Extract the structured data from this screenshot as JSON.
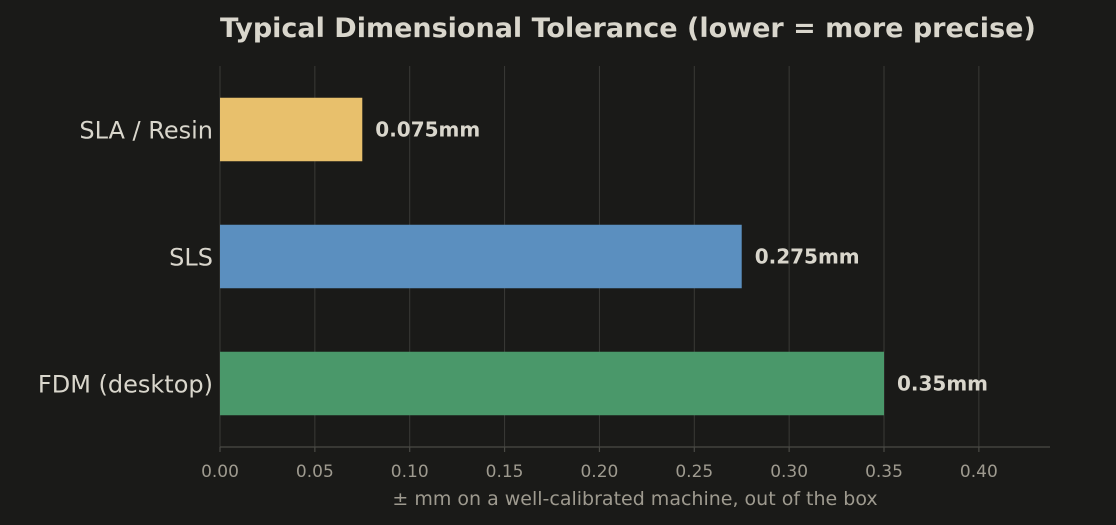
{
  "chart_data": {
    "type": "bar",
    "orientation": "horizontal",
    "title": "Typical Dimensional Tolerance (lower = more precise)",
    "xlabel": "± mm on a well-calibrated machine, out of the box",
    "ylabel": "",
    "categories": [
      "SLA / Resin",
      "SLS",
      "FDM (desktop)"
    ],
    "values": [
      0.075,
      0.275,
      0.35
    ],
    "value_labels": [
      "0.075mm",
      "0.275mm",
      "0.35mm"
    ],
    "colors": [
      "#e8c06c",
      "#5b8fbf",
      "#4a986a"
    ],
    "xlim": [
      0,
      0.4375
    ],
    "xticks": [
      0,
      0.05,
      0.1,
      0.15,
      0.2,
      0.25,
      0.3,
      0.35,
      0.4
    ],
    "xtick_labels": [
      "0.00",
      "0.05",
      "0.10",
      "0.15",
      "0.20",
      "0.25",
      "0.30",
      "0.35",
      "0.40"
    ],
    "grid": true,
    "background": "#1a1a18"
  }
}
